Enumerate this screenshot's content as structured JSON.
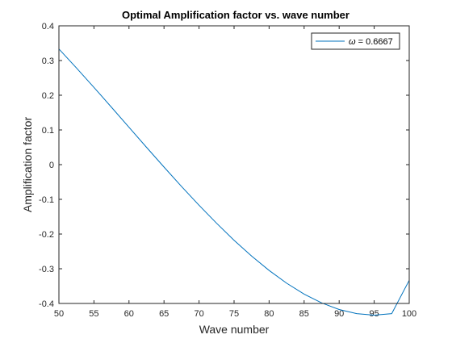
{
  "colors": {
    "background": "#ffffff",
    "axes": "#262626",
    "series": "#0072bd"
  },
  "chart_data": {
    "type": "line",
    "title": "Optimal Amplification factor vs. wave number",
    "xlabel": "Wave number",
    "ylabel": "Amplification factor",
    "xlim": [
      50,
      100
    ],
    "ylim": [
      -0.4,
      0.4
    ],
    "xticks": [
      50,
      55,
      60,
      65,
      70,
      75,
      80,
      85,
      90,
      95,
      100
    ],
    "yticks": [
      -0.4,
      -0.3,
      -0.2,
      -0.1,
      0,
      0.1,
      0.2,
      0.3,
      0.4
    ],
    "xtick_labels": [
      "50",
      "55",
      "60",
      "65",
      "70",
      "75",
      "80",
      "85",
      "90",
      "95",
      "100"
    ],
    "ytick_labels": [
      "-0.4",
      "-0.3",
      "-0.2",
      "-0.1",
      "0",
      "0.1",
      "0.2",
      "0.3",
      "0.4"
    ],
    "grid": false,
    "legend_position": "top-right",
    "series": [
      {
        "name": "ω = 0.6667",
        "legend_symbol": "ω",
        "legend_value": " = 0.6667",
        "color": "#0072bd",
        "x": [
          50,
          52.5,
          55,
          57.5,
          60,
          62.5,
          65,
          67.5,
          70,
          72.5,
          75,
          77.5,
          80,
          82.5,
          85,
          87.5,
          90,
          92.5,
          95,
          97.5,
          100
        ],
        "y": [
          0.3333,
          0.2787,
          0.2226,
          0.1654,
          0.1077,
          0.05,
          -0.007,
          -0.0629,
          -0.117,
          -0.1688,
          -0.2179,
          -0.2634,
          -0.3048,
          -0.3416,
          -0.373,
          -0.3985,
          -0.4175,
          -0.4294,
          -0.4336,
          -0.4294,
          -0.3333
        ]
      }
    ]
  }
}
